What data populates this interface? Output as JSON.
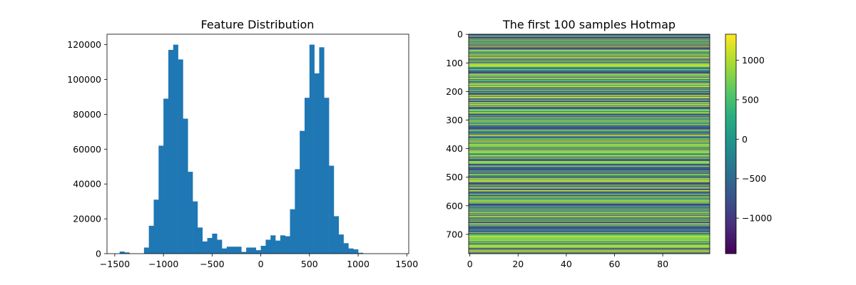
{
  "chart_data": [
    {
      "type": "bar",
      "title": "Feature Distribution",
      "xlabel": "",
      "ylabel": "",
      "xlim": [
        -1580,
        1520
      ],
      "ylim": [
        0,
        126000
      ],
      "xticks": [
        -1500,
        -1000,
        -500,
        0,
        500,
        1000,
        1500
      ],
      "yticks": [
        0,
        20000,
        40000,
        60000,
        80000,
        100000,
        120000
      ],
      "bin_width": 50,
      "bin_starts": [
        -1500,
        -1450,
        -1400,
        -1350,
        -1300,
        -1250,
        -1200,
        -1150,
        -1100,
        -1050,
        -1000,
        -950,
        -900,
        -850,
        -800,
        -750,
        -700,
        -650,
        -600,
        -550,
        -500,
        -450,
        -400,
        -350,
        -300,
        -250,
        -200,
        -150,
        -100,
        -50,
        0,
        50,
        100,
        150,
        200,
        250,
        300,
        350,
        400,
        450,
        500,
        550,
        600,
        650,
        700,
        750,
        800,
        850,
        900,
        950,
        1000,
        1050,
        1100,
        1150,
        1200,
        1250,
        1300
      ],
      "values": [
        0,
        1200,
        700,
        0,
        0,
        0,
        3500,
        16000,
        31000,
        62000,
        89000,
        117000,
        120000,
        111500,
        77500,
        47000,
        30000,
        15000,
        7000,
        9000,
        11500,
        8000,
        3000,
        4000,
        4000,
        4000,
        1000,
        3500,
        3500,
        2000,
        4500,
        8000,
        10500,
        7500,
        10500,
        10000,
        25500,
        48500,
        70500,
        89500,
        120000,
        103500,
        118500,
        89500,
        50500,
        21500,
        11000,
        6000,
        3000,
        2500,
        500,
        0,
        0,
        0,
        0,
        0,
        0
      ],
      "color": "#1f77b4"
    },
    {
      "type": "heatmap",
      "title": "The first 100 samples Hotmap",
      "xlabel": "",
      "ylabel": "",
      "rows": 768,
      "columns": 100,
      "xticks": [
        0,
        20,
        40,
        60,
        80
      ],
      "yticks": [
        0,
        100,
        200,
        300,
        400,
        500,
        600,
        700
      ],
      "colorbar": {
        "min": -1450,
        "max": 1330,
        "ticks": [
          -1000,
          -500,
          0,
          500,
          1000
        ],
        "tick_labels": [
          "−1000",
          "−500",
          "0",
          "500",
          "1000"
        ],
        "colormap": "viridis"
      },
      "row_pattern": "values constant across columns; rows alternate between high (green/yellow) and low (blue/purple) bands"
    }
  ]
}
